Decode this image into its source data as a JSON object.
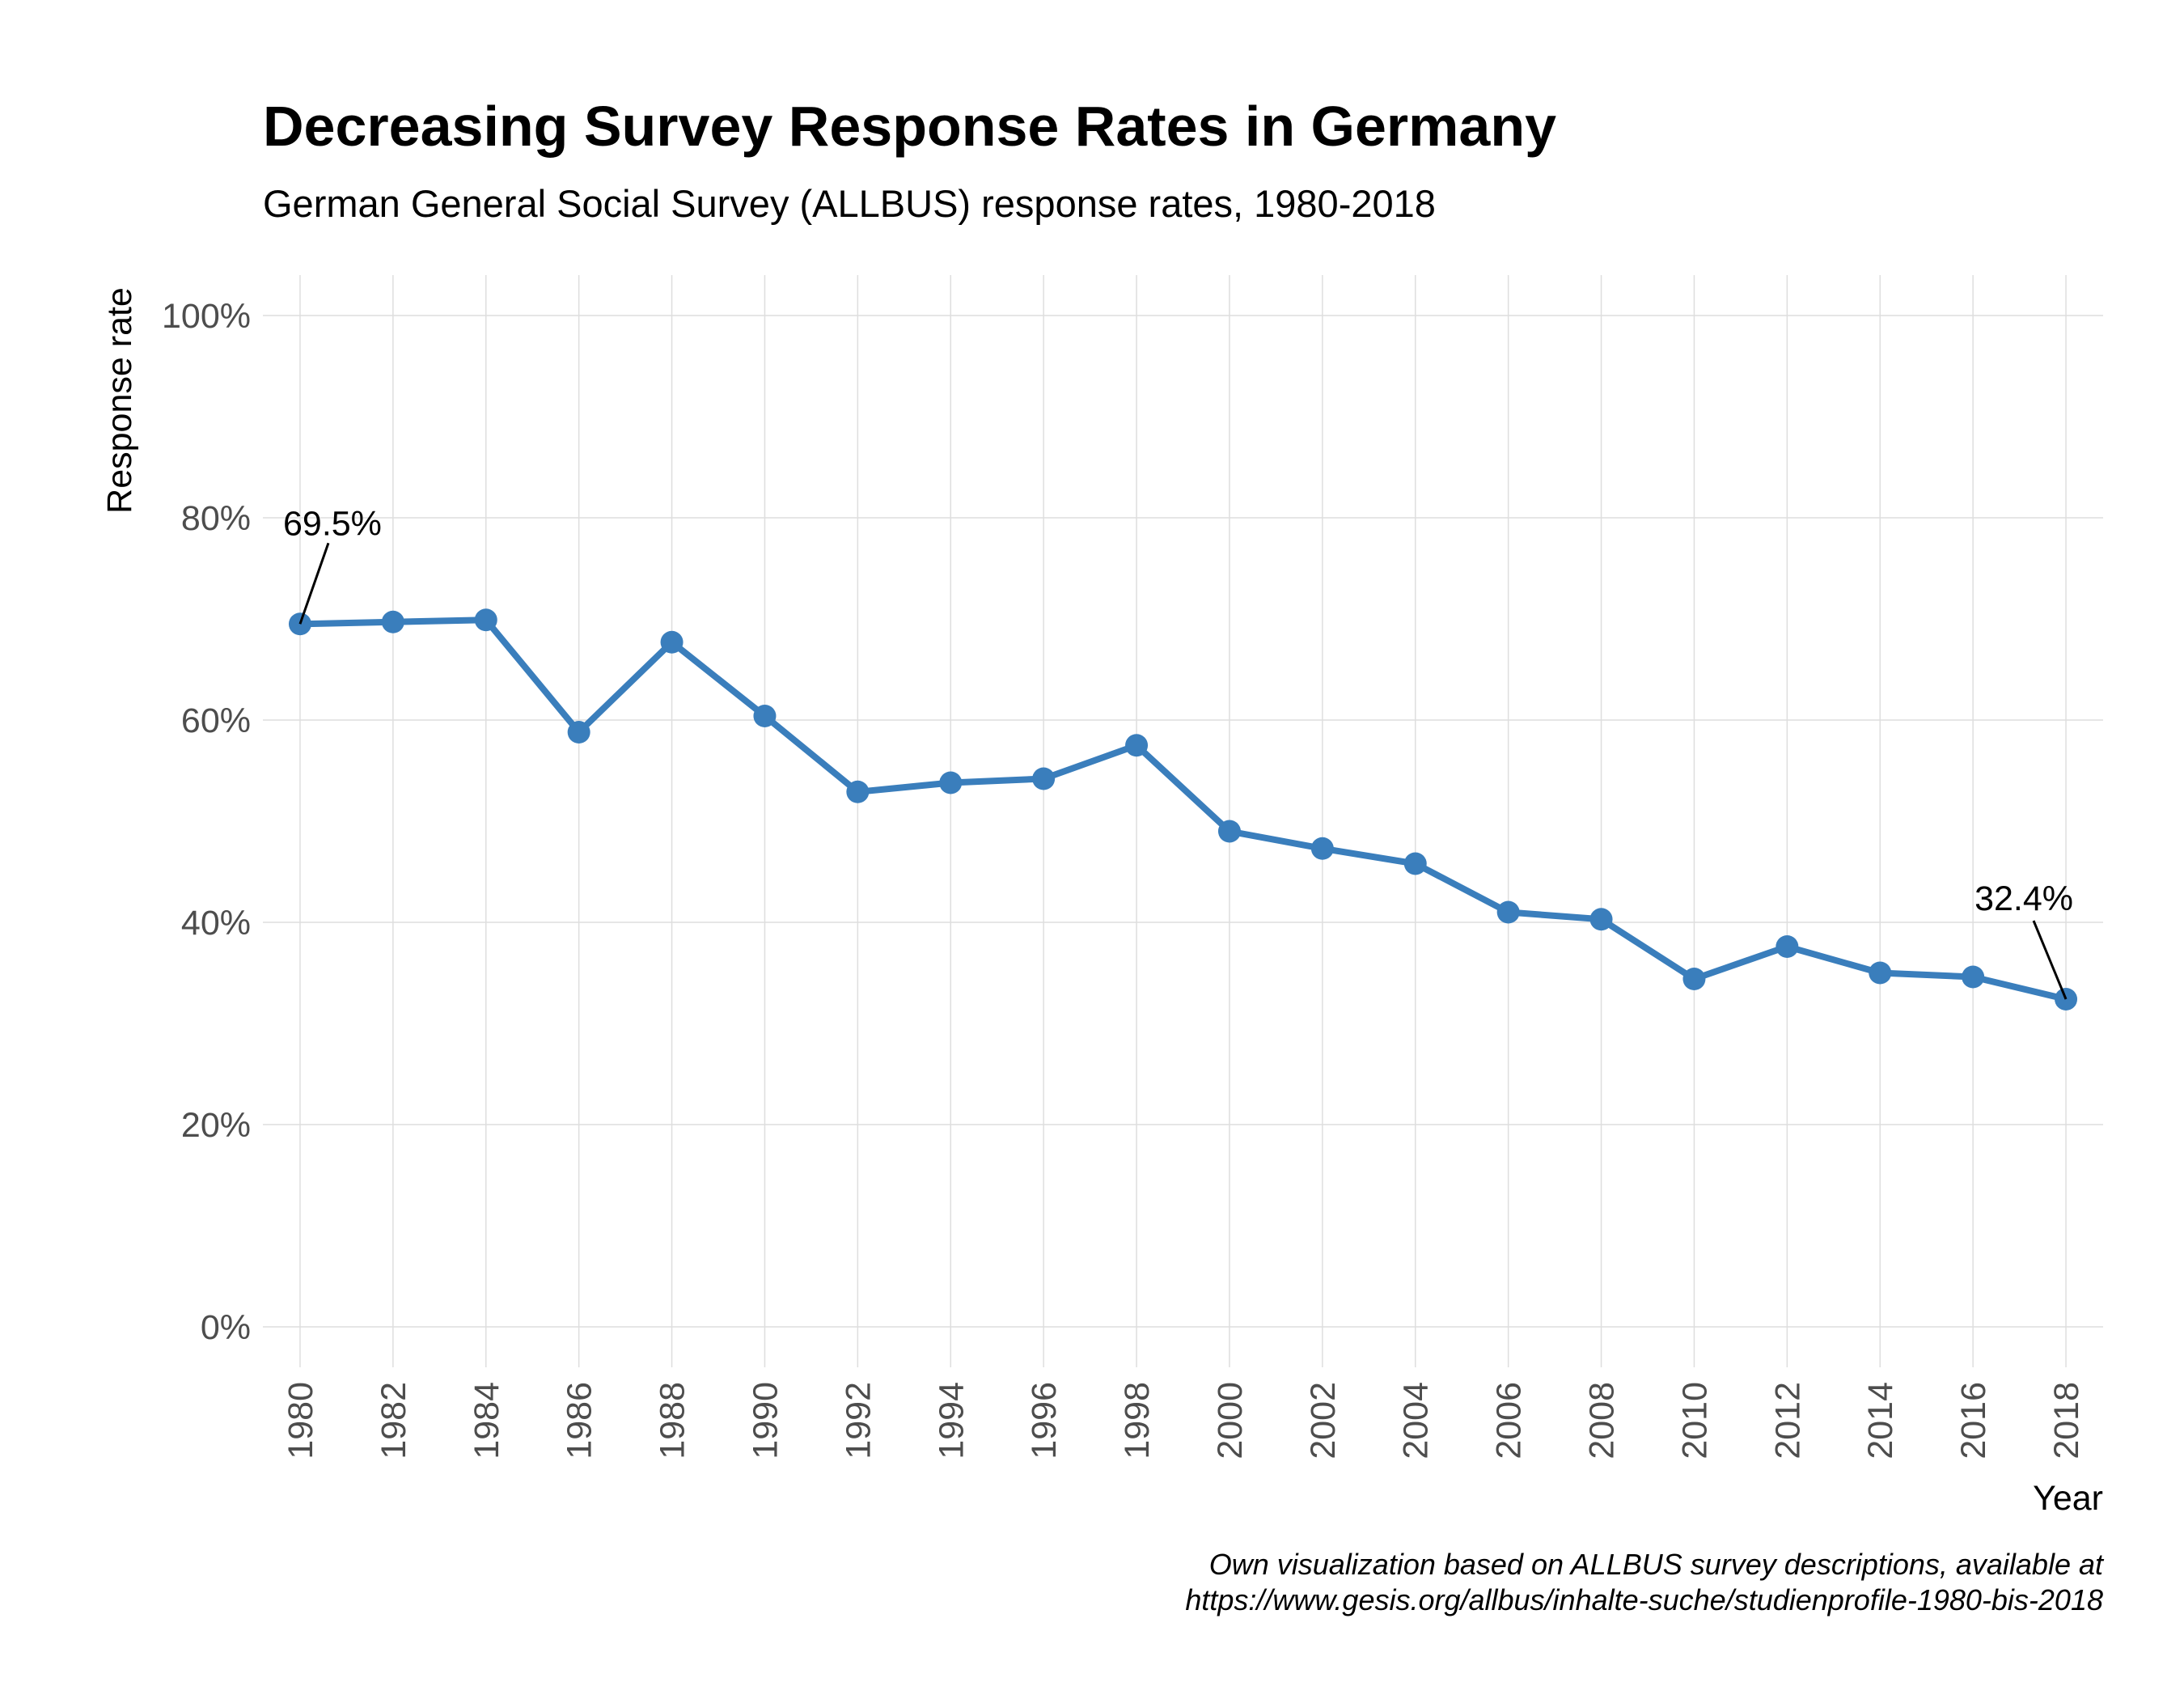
{
  "chart_data": {
    "type": "line",
    "title": "Decreasing Survey Response Rates in Germany",
    "subtitle": "German General Social Survey (ALLBUS) response rates, 1980-2018",
    "xlabel": "Year",
    "ylabel": "Response rate",
    "x": [
      1980,
      1982,
      1984,
      1986,
      1988,
      1990,
      1992,
      1994,
      1996,
      1998,
      2000,
      2002,
      2004,
      2006,
      2008,
      2010,
      2012,
      2014,
      2016,
      2018
    ],
    "x_tick_labels": [
      "1980",
      "1982",
      "1984",
      "1986",
      "1988",
      "1990",
      "1992",
      "1994",
      "1996",
      "1998",
      "2000",
      "2002",
      "2004",
      "2006",
      "2008",
      "2010",
      "2012",
      "2014",
      "2016",
      "2018"
    ],
    "series": [
      {
        "values": [
          69.5,
          69.7,
          69.9,
          58.8,
          67.7,
          60.4,
          52.9,
          53.8,
          54.2,
          57.5,
          49.0,
          47.3,
          45.8,
          41.0,
          40.3,
          34.4,
          37.6,
          35.0,
          34.6,
          32.4
        ],
        "color": "#3a7ebc"
      }
    ],
    "y_ticks": [
      0,
      20,
      40,
      60,
      80,
      100
    ],
    "y_tick_labels": [
      "0%",
      "20%",
      "40%",
      "60%",
      "80%",
      "100%"
    ],
    "ylim": [
      -4,
      104
    ],
    "xlim": [
      1979.2,
      2018.8
    ],
    "grid": true,
    "annotations": [
      {
        "x": 1980,
        "y": 69.5,
        "text": "69.5%"
      },
      {
        "x": 2018,
        "y": 32.4,
        "text": "32.4%"
      }
    ],
    "caption": [
      "Own visualization based on ALLBUS survey descriptions, available at",
      "https://www.gesis.org/allbus/inhalte-suche/studienprofile-1980-bis-2018"
    ]
  }
}
